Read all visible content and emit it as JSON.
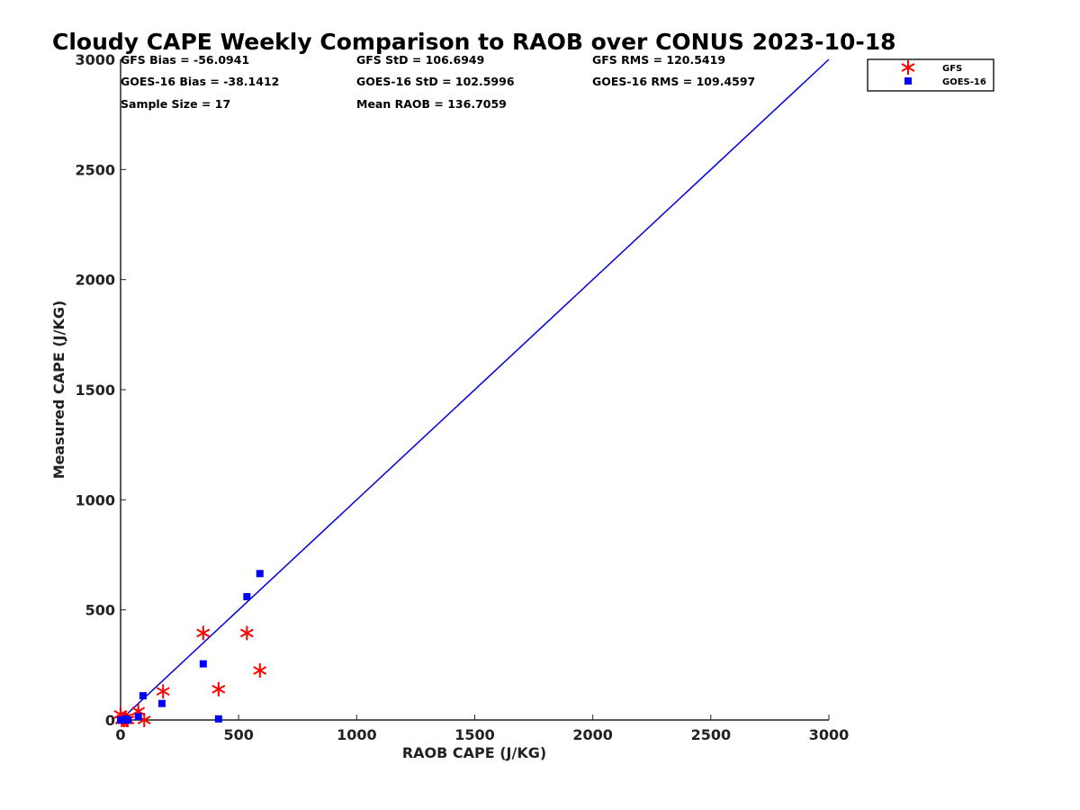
{
  "chart_data": {
    "type": "scatter",
    "title": "Cloudy CAPE Weekly Comparison to RAOB over CONUS 2023-10-18",
    "xlabel": "RAOB CAPE (J/KG)",
    "ylabel": "Measured CAPE (J/KG)",
    "xlim": [
      0,
      3000
    ],
    "ylim": [
      0,
      3000
    ],
    "xticks": [
      "0",
      "500",
      "1000",
      "1500",
      "2000",
      "2500",
      "3000"
    ],
    "yticks": [
      "0",
      "500",
      "1000",
      "1500",
      "2000",
      "2500",
      "3000"
    ],
    "legend_position": "top-right",
    "reference_line": {
      "name": "1:1",
      "x": [
        0,
        3000
      ],
      "y": [
        0,
        3000
      ],
      "color": "#0000dd"
    },
    "series": [
      {
        "name": "GFS",
        "marker": "asterisk",
        "color": "#ff0000",
        "points": [
          [
            0,
            25
          ],
          [
            5,
            0
          ],
          [
            10,
            5
          ],
          [
            15,
            0
          ],
          [
            20,
            10
          ],
          [
            25,
            0
          ],
          [
            30,
            0
          ],
          [
            75,
            40
          ],
          [
            100,
            0
          ],
          [
            180,
            130
          ],
          [
            350,
            395
          ],
          [
            415,
            140
          ],
          [
            535,
            395
          ],
          [
            590,
            225
          ]
        ]
      },
      {
        "name": "GOES-16",
        "marker": "square",
        "color": "#0000ff",
        "points": [
          [
            0,
            0
          ],
          [
            10,
            0
          ],
          [
            20,
            5
          ],
          [
            30,
            0
          ],
          [
            75,
            15
          ],
          [
            95,
            110
          ],
          [
            175,
            75
          ],
          [
            350,
            255
          ],
          [
            415,
            5
          ],
          [
            535,
            560
          ],
          [
            590,
            665
          ]
        ]
      }
    ]
  },
  "stats": {
    "gfs_bias": "GFS Bias = -56.0941",
    "gfs_std": "GFS StD = 106.6949",
    "gfs_rms": "GFS RMS = 120.5419",
    "goes_bias": "GOES-16 Bias = -38.1412",
    "goes_std": "GOES-16 StD = 102.5996",
    "goes_rms": "GOES-16 RMS = 109.4597",
    "sample_size": "Sample Size = 17",
    "mean_raob": "Mean RAOB = 136.7059"
  },
  "legend": {
    "gfs_label": "GFS",
    "goes_label": "GOES-16"
  }
}
